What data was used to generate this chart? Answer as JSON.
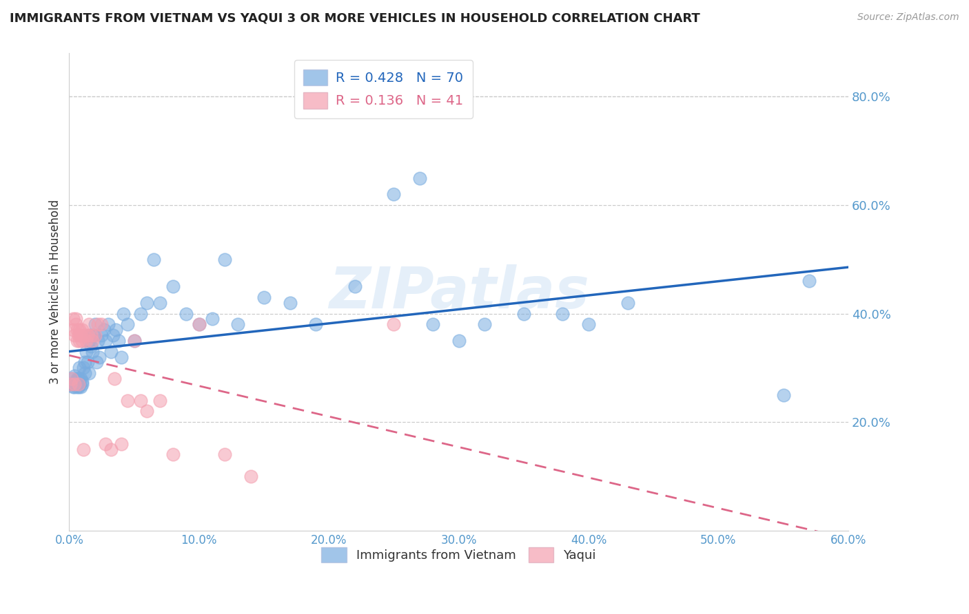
{
  "title": "IMMIGRANTS FROM VIETNAM VS YAQUI 3 OR MORE VEHICLES IN HOUSEHOLD CORRELATION CHART",
  "source": "Source: ZipAtlas.com",
  "ylabel": "3 or more Vehicles in Household",
  "xlim": [
    0.0,
    0.6
  ],
  "ylim": [
    0.0,
    0.88
  ],
  "xticks": [
    0.0,
    0.1,
    0.2,
    0.3,
    0.4,
    0.5,
    0.6
  ],
  "yticks": [
    0.2,
    0.4,
    0.6,
    0.8
  ],
  "grid_color": "#cccccc",
  "background_color": "#ffffff",
  "series1_name": "Immigrants from Vietnam",
  "series1_color": "#7aade0",
  "series1_line_color": "#2266bb",
  "series1_R": 0.428,
  "series1_N": 70,
  "series2_name": "Yaqui",
  "series2_color": "#f4a0b0",
  "series2_line_color": "#dd6688",
  "series2_R": 0.136,
  "series2_N": 41,
  "watermark": "ZIPatlas",
  "tick_color": "#5599cc",
  "series1_x": [
    0.001,
    0.002,
    0.003,
    0.003,
    0.004,
    0.004,
    0.005,
    0.005,
    0.006,
    0.006,
    0.007,
    0.007,
    0.008,
    0.008,
    0.009,
    0.009,
    0.01,
    0.01,
    0.011,
    0.012,
    0.012,
    0.013,
    0.014,
    0.015,
    0.015,
    0.016,
    0.017,
    0.018,
    0.019,
    0.02,
    0.021,
    0.022,
    0.023,
    0.025,
    0.027,
    0.028,
    0.03,
    0.032,
    0.034,
    0.036,
    0.038,
    0.04,
    0.042,
    0.045,
    0.05,
    0.055,
    0.06,
    0.065,
    0.07,
    0.08,
    0.09,
    0.1,
    0.11,
    0.12,
    0.13,
    0.15,
    0.17,
    0.19,
    0.22,
    0.25,
    0.27,
    0.28,
    0.3,
    0.32,
    0.35,
    0.38,
    0.4,
    0.43,
    0.55,
    0.57
  ],
  "series1_y": [
    0.27,
    0.28,
    0.27,
    0.265,
    0.265,
    0.285,
    0.27,
    0.275,
    0.28,
    0.265,
    0.28,
    0.265,
    0.3,
    0.27,
    0.28,
    0.265,
    0.27,
    0.275,
    0.3,
    0.31,
    0.29,
    0.33,
    0.31,
    0.35,
    0.29,
    0.36,
    0.34,
    0.33,
    0.36,
    0.38,
    0.31,
    0.35,
    0.32,
    0.36,
    0.37,
    0.35,
    0.38,
    0.33,
    0.36,
    0.37,
    0.35,
    0.32,
    0.4,
    0.38,
    0.35,
    0.4,
    0.42,
    0.5,
    0.42,
    0.45,
    0.4,
    0.38,
    0.39,
    0.5,
    0.38,
    0.43,
    0.42,
    0.38,
    0.45,
    0.62,
    0.65,
    0.38,
    0.35,
    0.38,
    0.4,
    0.4,
    0.38,
    0.42,
    0.25,
    0.46
  ],
  "series2_x": [
    0.001,
    0.002,
    0.003,
    0.003,
    0.004,
    0.004,
    0.005,
    0.005,
    0.006,
    0.006,
    0.007,
    0.007,
    0.008,
    0.008,
    0.009,
    0.01,
    0.01,
    0.011,
    0.012,
    0.013,
    0.014,
    0.015,
    0.017,
    0.018,
    0.02,
    0.022,
    0.025,
    0.028,
    0.032,
    0.035,
    0.04,
    0.045,
    0.05,
    0.055,
    0.06,
    0.07,
    0.08,
    0.1,
    0.12,
    0.14,
    0.25
  ],
  "series2_y": [
    0.27,
    0.28,
    0.37,
    0.39,
    0.27,
    0.36,
    0.38,
    0.39,
    0.35,
    0.37,
    0.27,
    0.36,
    0.35,
    0.37,
    0.36,
    0.35,
    0.37,
    0.15,
    0.36,
    0.35,
    0.36,
    0.38,
    0.36,
    0.35,
    0.36,
    0.38,
    0.38,
    0.16,
    0.15,
    0.28,
    0.16,
    0.24,
    0.35,
    0.24,
    0.22,
    0.24,
    0.14,
    0.38,
    0.14,
    0.1,
    0.38
  ]
}
